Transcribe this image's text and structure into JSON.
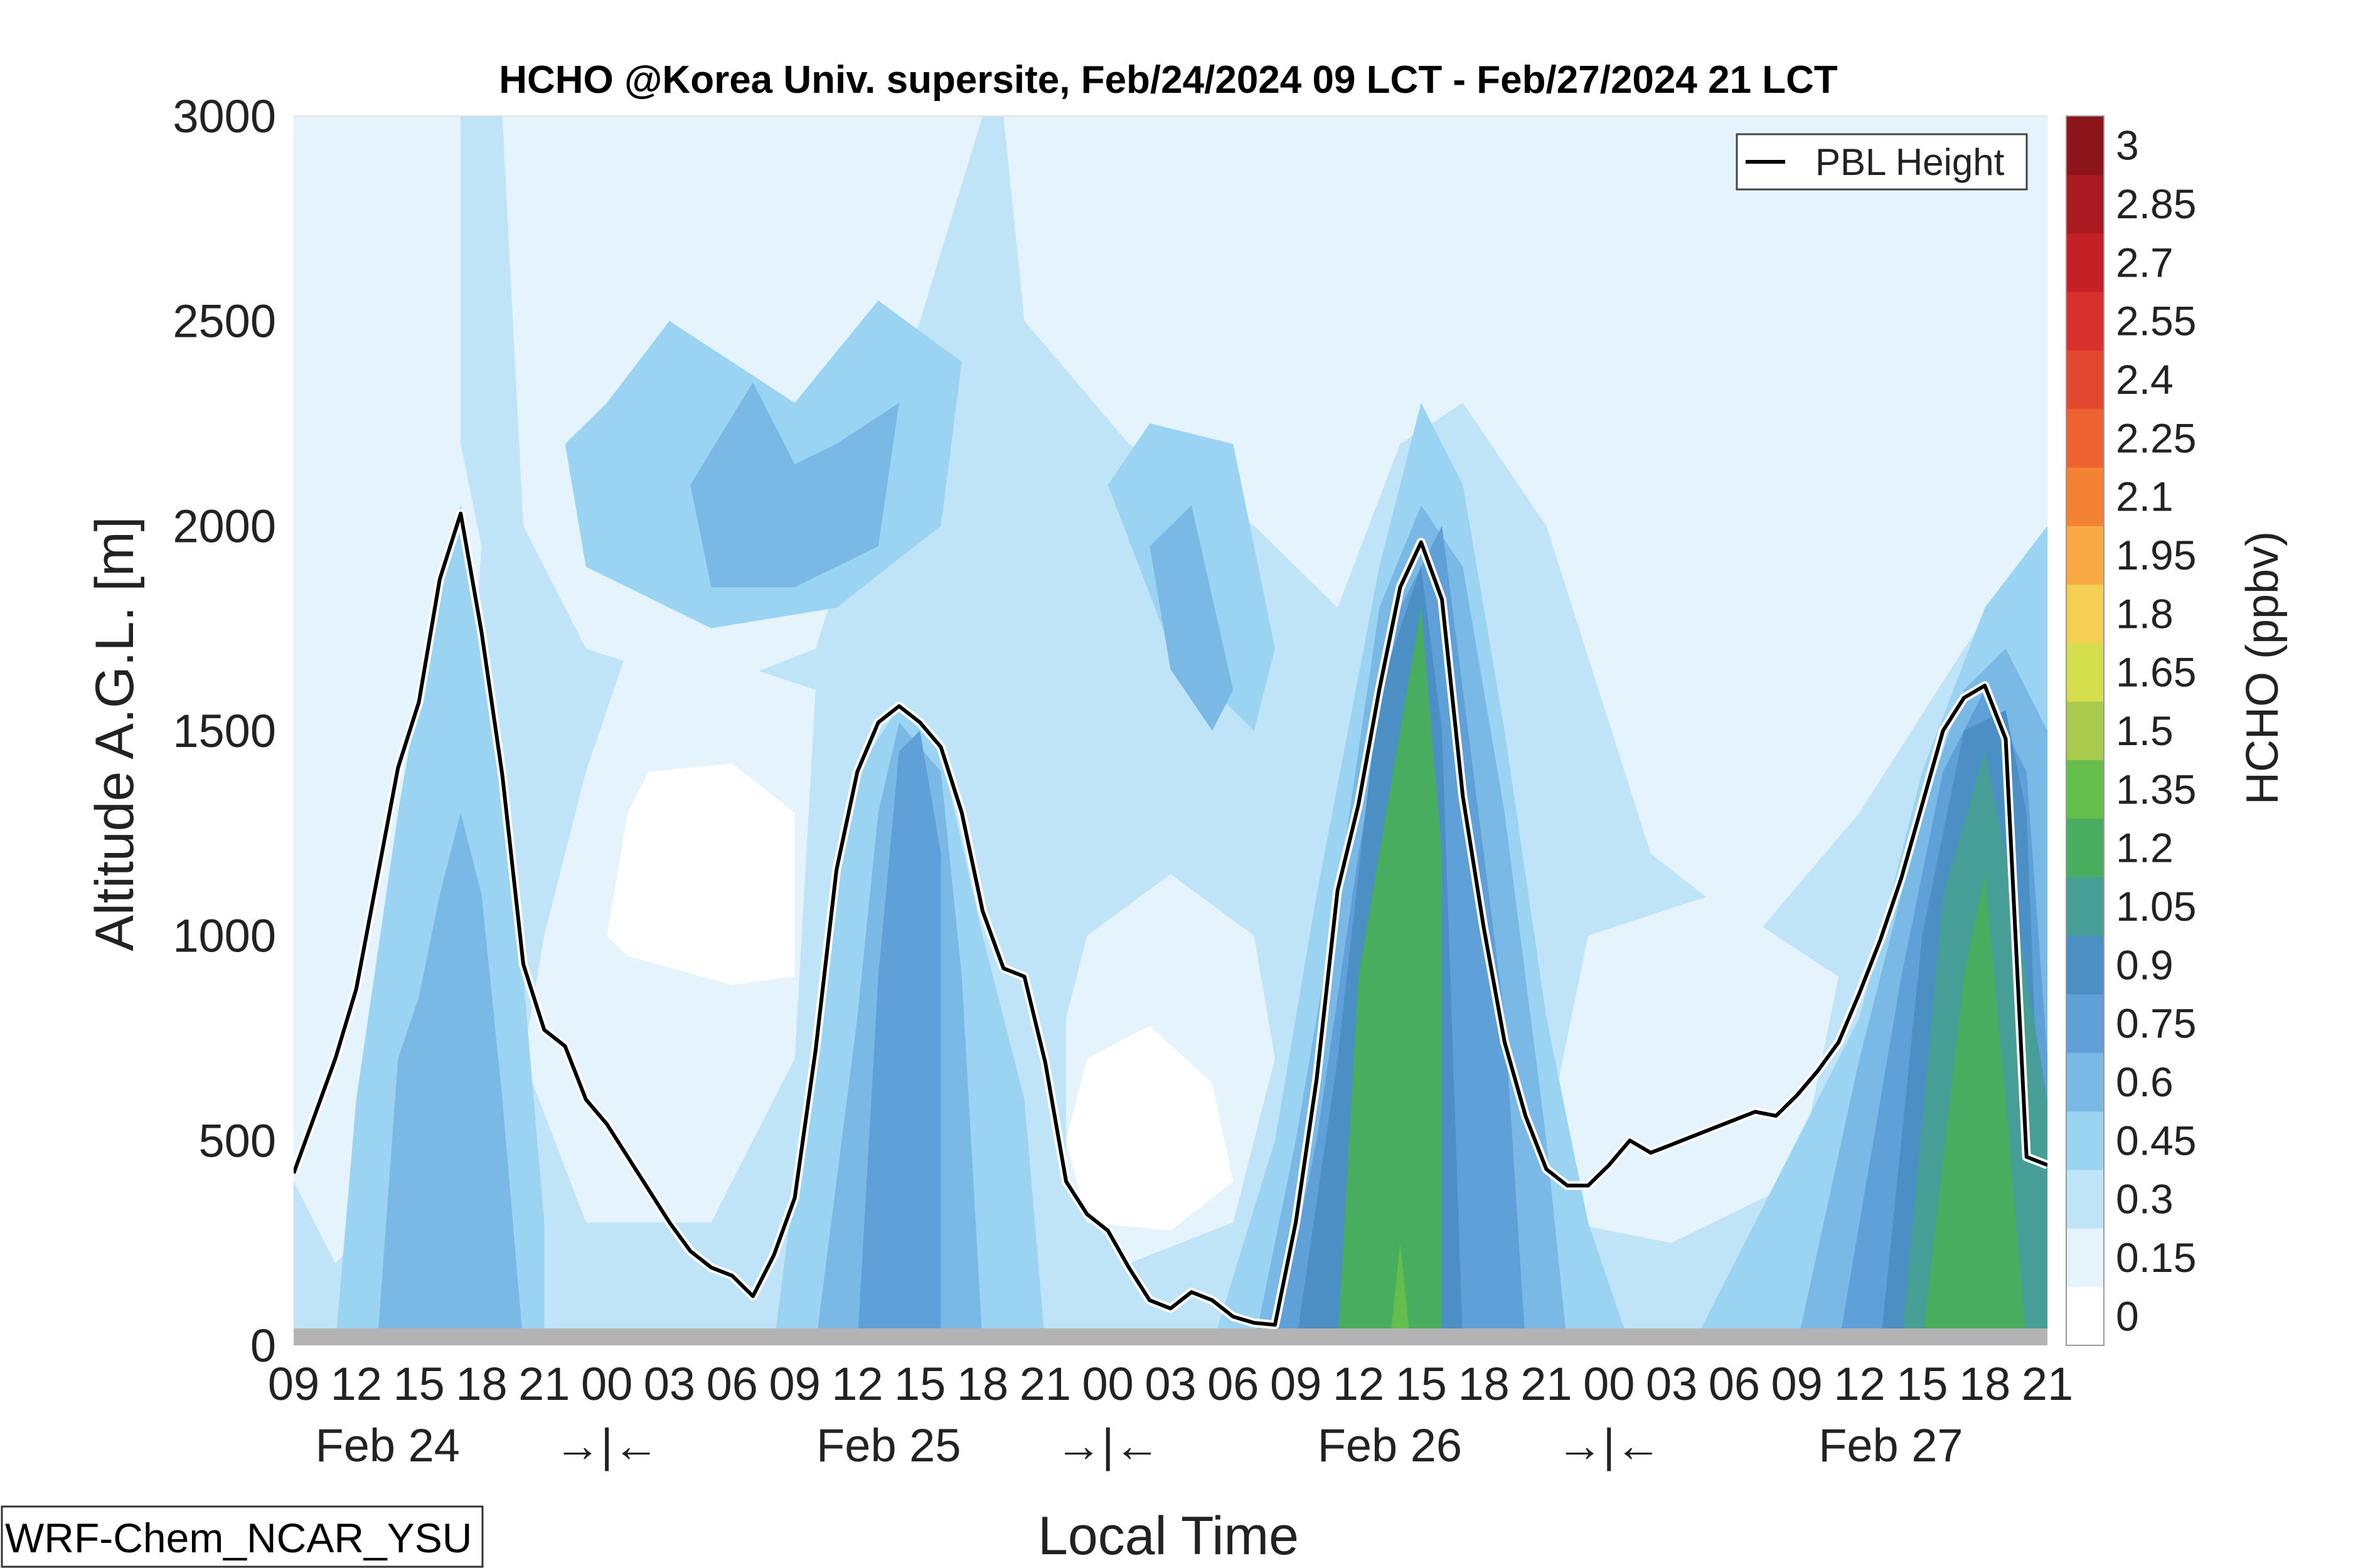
{
  "chart_data": {
    "type": "heatmap",
    "title": "HCHO @Korea Univ. supersite, Feb/24/2024 09 LCT - Feb/27/2024 21 LCT",
    "xlabel": "Local Time",
    "ylabel": "Altitude A.G.L. [m]",
    "ylim": [
      0,
      3000
    ],
    "y_ticks": [
      "0",
      "500",
      "1000",
      "1500",
      "2000",
      "2500",
      "3000"
    ],
    "x_hours": [
      0,
      3,
      6,
      9,
      12,
      15,
      18,
      21,
      24,
      27,
      30,
      33,
      36,
      39,
      42,
      45,
      48,
      51,
      54,
      57,
      60,
      63,
      66,
      69,
      72,
      75,
      78,
      81,
      84
    ],
    "x_tick_labels": [
      "09",
      "12",
      "15",
      "18",
      "21",
      "00",
      "03",
      "06",
      "09",
      "12",
      "15",
      "18",
      "21",
      "00",
      "03",
      "06",
      "09",
      "12",
      "15",
      "18",
      "21",
      "00",
      "03",
      "06",
      "09",
      "12",
      "15",
      "18",
      "21"
    ],
    "day_labels": [
      {
        "hour": 4.5,
        "text": "Feb 24"
      },
      {
        "hour": 28.5,
        "text": "Feb 25"
      },
      {
        "hour": 52.5,
        "text": "Feb 26"
      },
      {
        "hour": 76.5,
        "text": "Feb 27"
      }
    ],
    "day_separators": [
      {
        "hour": 15,
        "text": "→|←"
      },
      {
        "hour": 39,
        "text": "→|←"
      },
      {
        "hour": 63,
        "text": "→|←"
      }
    ],
    "colorbar": {
      "label": "HCHO (ppbv)",
      "levels": [
        0,
        0.15,
        0.3,
        0.45,
        0.6,
        0.75,
        0.9,
        1.05,
        1.2,
        1.35,
        1.5,
        1.65,
        1.8,
        1.95,
        2.1,
        2.25,
        2.4,
        2.55,
        2.7,
        2.85,
        3
      ],
      "tick_labels": [
        "0",
        "0.15",
        "0.3",
        "0.45",
        "0.6",
        "0.75",
        "0.9",
        "1.05",
        "1.2",
        "1.35",
        "1.5",
        "1.65",
        "1.8",
        "1.95",
        "2.1",
        "2.25",
        "2.4",
        "2.55",
        "2.7",
        "2.85",
        "3"
      ],
      "colors": [
        "#ffffff",
        "#e4f3fc",
        "#bfe3f7",
        "#9bd3f3",
        "#7ab8e6",
        "#5fa0d8",
        "#4b8fc4",
        "#469e96",
        "#48ad5f",
        "#65bd4c",
        "#a9cb4d",
        "#d5df4e",
        "#f4cf53",
        "#f8a943",
        "#f48234",
        "#ec6230",
        "#e44730",
        "#d8302c",
        "#c42025",
        "#aa1a20",
        "#8b1518"
      ]
    },
    "pbl_series_name": "PBL Height",
    "pbl_height": [
      {
        "x": 0,
        "y": 420
      },
      {
        "x": 1,
        "y": 560
      },
      {
        "x": 2,
        "y": 700
      },
      {
        "x": 3,
        "y": 870
      },
      {
        "x": 4,
        "y": 1140
      },
      {
        "x": 5,
        "y": 1410
      },
      {
        "x": 6,
        "y": 1570
      },
      {
        "x": 7,
        "y": 1870
      },
      {
        "x": 8,
        "y": 2030
      },
      {
        "x": 9,
        "y": 1740
      },
      {
        "x": 10,
        "y": 1390
      },
      {
        "x": 11,
        "y": 930
      },
      {
        "x": 12,
        "y": 770
      },
      {
        "x": 13,
        "y": 730
      },
      {
        "x": 14,
        "y": 600
      },
      {
        "x": 15,
        "y": 540
      },
      {
        "x": 16,
        "y": 460
      },
      {
        "x": 17,
        "y": 380
      },
      {
        "x": 18,
        "y": 300
      },
      {
        "x": 19,
        "y": 230
      },
      {
        "x": 20,
        "y": 190
      },
      {
        "x": 21,
        "y": 170
      },
      {
        "x": 22,
        "y": 120
      },
      {
        "x": 23,
        "y": 220
      },
      {
        "x": 24,
        "y": 360
      },
      {
        "x": 25,
        "y": 720
      },
      {
        "x": 26,
        "y": 1160
      },
      {
        "x": 27,
        "y": 1400
      },
      {
        "x": 28,
        "y": 1520
      },
      {
        "x": 29,
        "y": 1560
      },
      {
        "x": 30,
        "y": 1520
      },
      {
        "x": 31,
        "y": 1460
      },
      {
        "x": 32,
        "y": 1300
      },
      {
        "x": 33,
        "y": 1060
      },
      {
        "x": 34,
        "y": 920
      },
      {
        "x": 35,
        "y": 900
      },
      {
        "x": 36,
        "y": 690
      },
      {
        "x": 37,
        "y": 400
      },
      {
        "x": 38,
        "y": 320
      },
      {
        "x": 39,
        "y": 280
      },
      {
        "x": 40,
        "y": 190
      },
      {
        "x": 41,
        "y": 110
      },
      {
        "x": 42,
        "y": 90
      },
      {
        "x": 43,
        "y": 130
      },
      {
        "x": 44,
        "y": 110
      },
      {
        "x": 45,
        "y": 70
      },
      {
        "x": 46,
        "y": 55
      },
      {
        "x": 47,
        "y": 50
      },
      {
        "x": 48,
        "y": 300
      },
      {
        "x": 49,
        "y": 650
      },
      {
        "x": 50,
        "y": 1110
      },
      {
        "x": 51,
        "y": 1320
      },
      {
        "x": 52,
        "y": 1600
      },
      {
        "x": 53,
        "y": 1850
      },
      {
        "x": 54,
        "y": 1960
      },
      {
        "x": 55,
        "y": 1820
      },
      {
        "x": 56,
        "y": 1340
      },
      {
        "x": 57,
        "y": 1020
      },
      {
        "x": 58,
        "y": 740
      },
      {
        "x": 59,
        "y": 560
      },
      {
        "x": 60,
        "y": 430
      },
      {
        "x": 61,
        "y": 390
      },
      {
        "x": 62,
        "y": 390
      },
      {
        "x": 63,
        "y": 440
      },
      {
        "x": 64,
        "y": 500
      },
      {
        "x": 65,
        "y": 470
      },
      {
        "x": 66,
        "y": 490
      },
      {
        "x": 67,
        "y": 510
      },
      {
        "x": 68,
        "y": 530
      },
      {
        "x": 69,
        "y": 550
      },
      {
        "x": 70,
        "y": 570
      },
      {
        "x": 71,
        "y": 560
      },
      {
        "x": 72,
        "y": 610
      },
      {
        "x": 73,
        "y": 670
      },
      {
        "x": 74,
        "y": 740
      },
      {
        "x": 75,
        "y": 860
      },
      {
        "x": 76,
        "y": 990
      },
      {
        "x": 77,
        "y": 1140
      },
      {
        "x": 78,
        "y": 1320
      },
      {
        "x": 79,
        "y": 1500
      },
      {
        "x": 80,
        "y": 1580
      },
      {
        "x": 81,
        "y": 1610
      },
      {
        "x": 82,
        "y": 1480
      },
      {
        "x": 83,
        "y": 460
      },
      {
        "x": 84,
        "y": 440
      }
    ],
    "field_description_levels": {
      "background_upper": 0.15,
      "plumes": [
        {
          "center_hour": 7.5,
          "max_ppbv": 0.6
        },
        {
          "center_hour": 30,
          "max_ppbv": 0.9
        },
        {
          "center_hour": 54,
          "max_ppbv": 1.35
        },
        {
          "center_hour": 81,
          "max_ppbv": 1.2
        }
      ]
    },
    "legend_position": "top-right",
    "grid": false,
    "annotation": "WRF-Chem_NCAR_YSU"
  }
}
